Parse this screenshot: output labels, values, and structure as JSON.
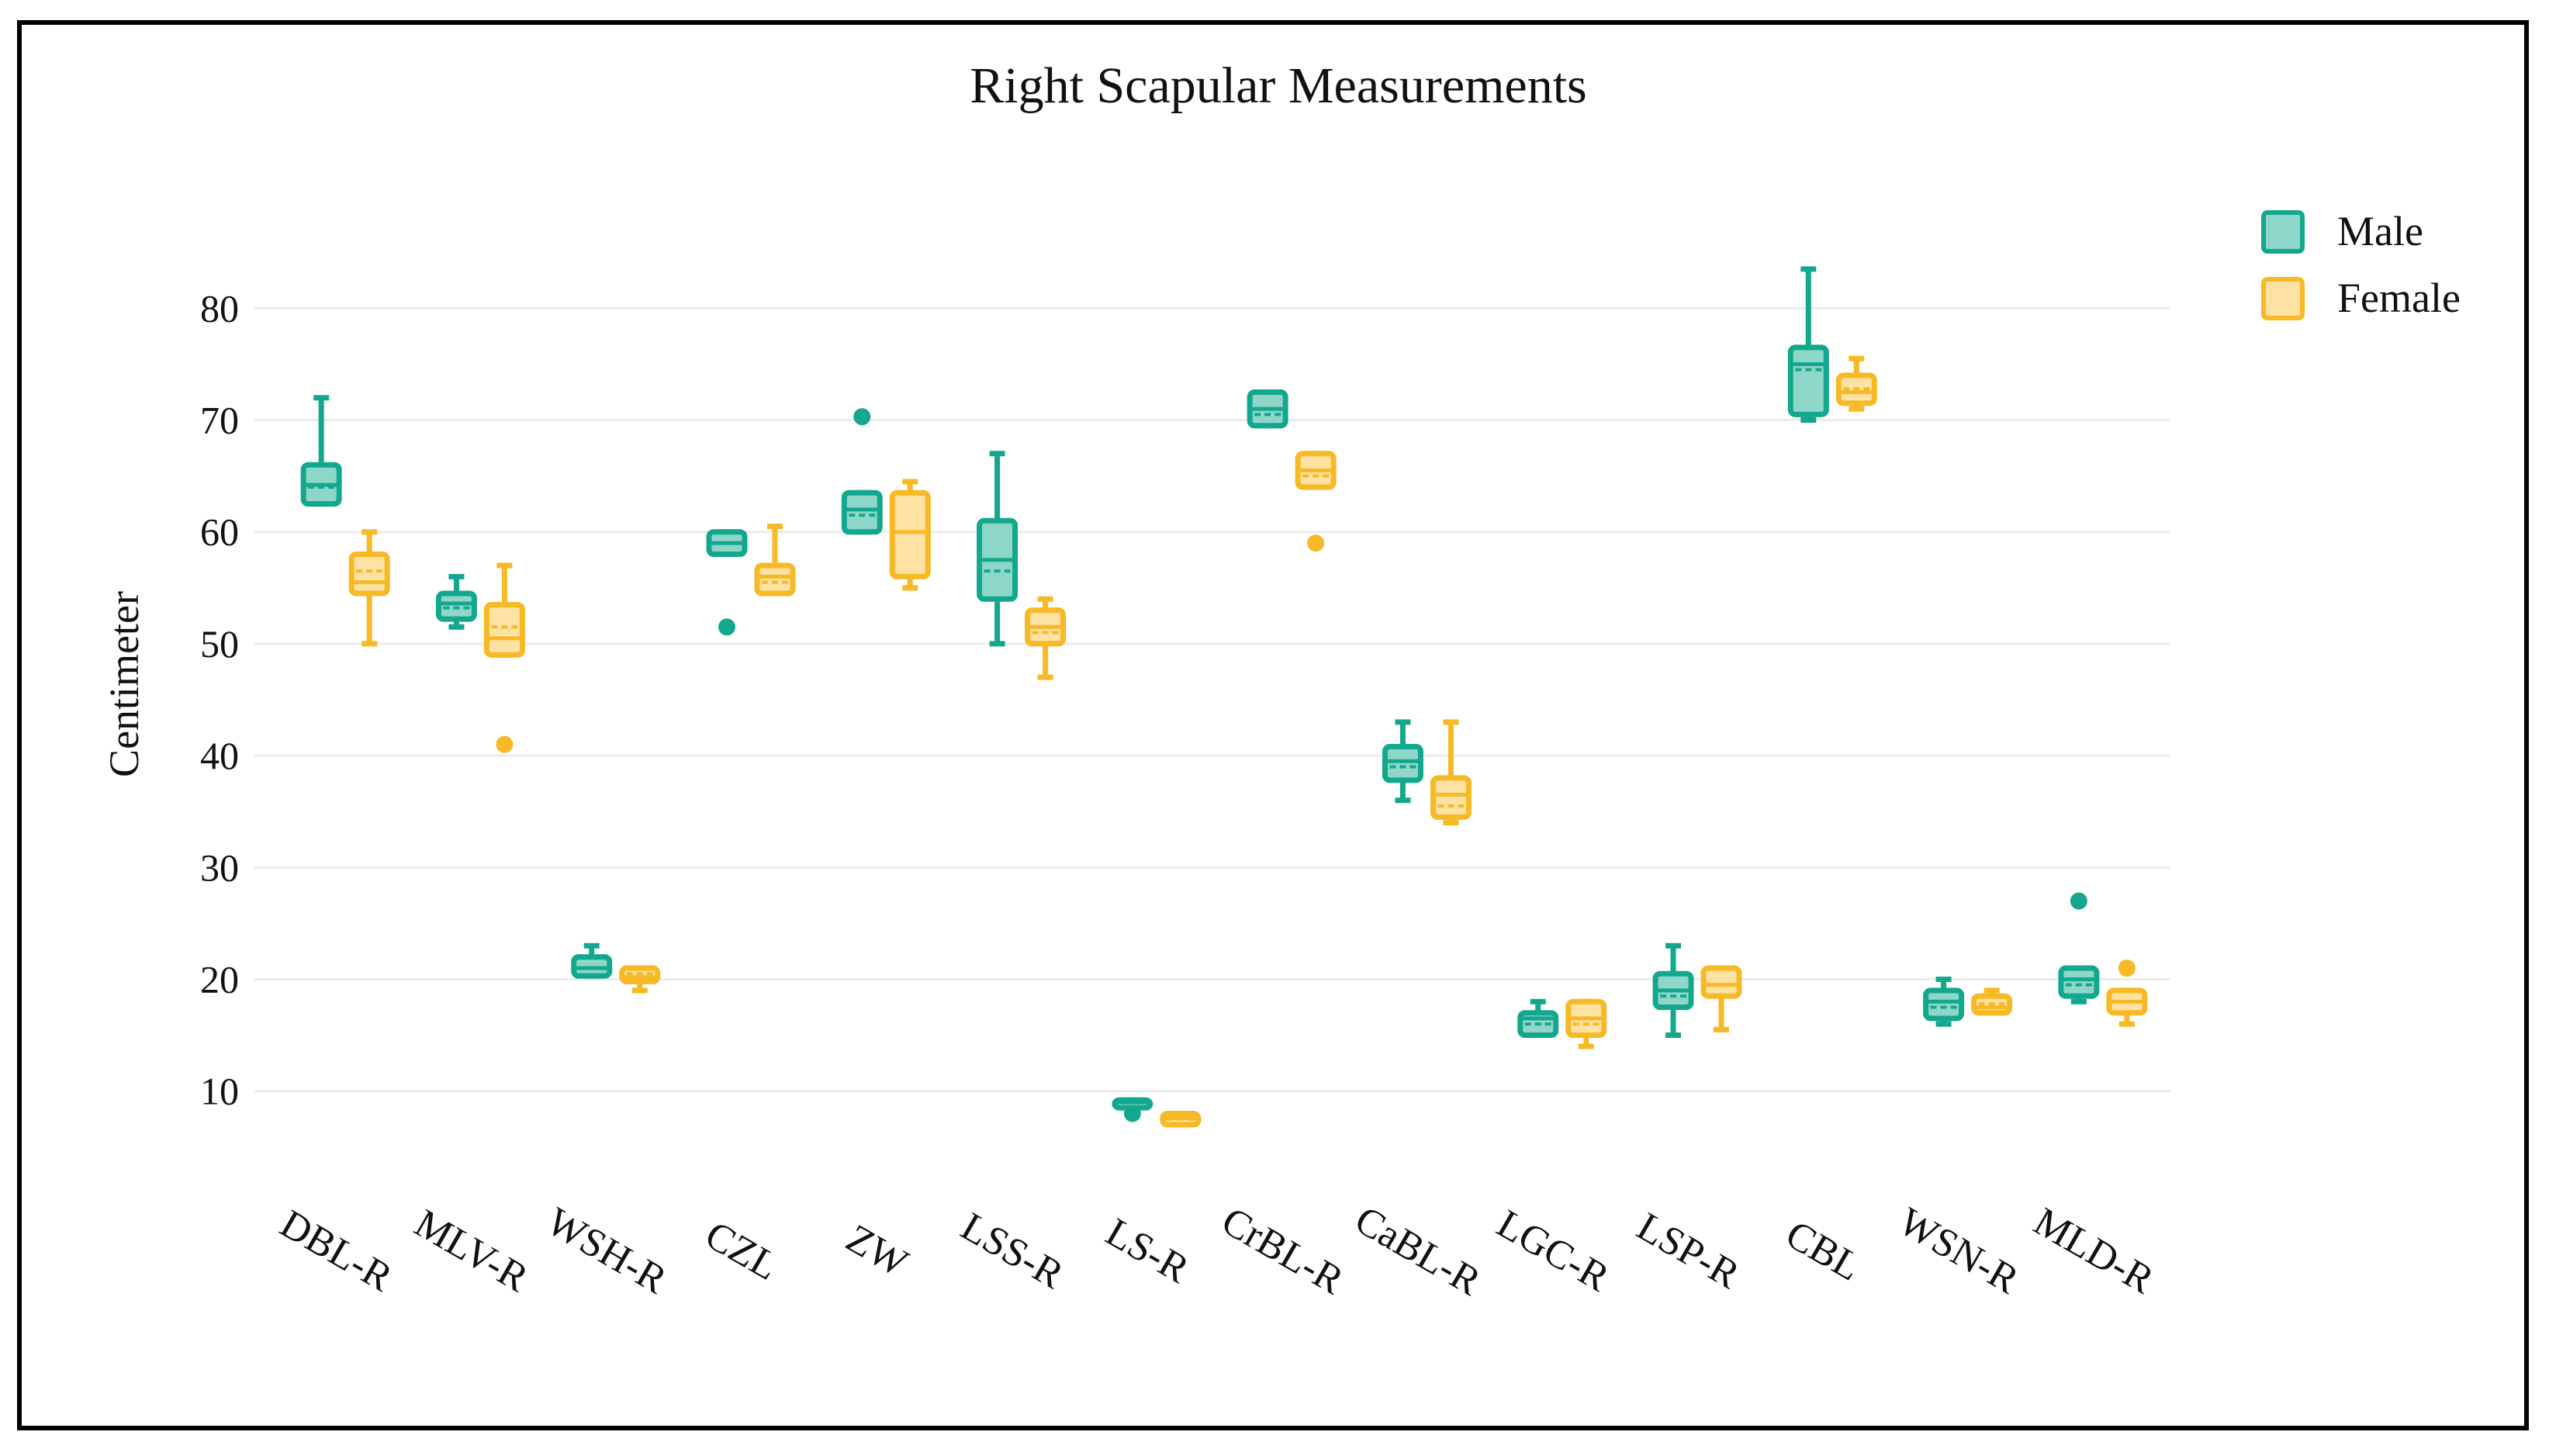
{
  "chart_data": {
    "type": "box",
    "title": "Right Scapular Measurements",
    "xlabel": "",
    "ylabel": "Centimeter",
    "ylim": [
      2,
      88
    ],
    "yticks": [
      10,
      20,
      30,
      40,
      50,
      60,
      70,
      80
    ],
    "grid": true,
    "legend_position": "top-right",
    "categories": [
      "DBL-R",
      "MLV-R",
      "WSH-R",
      "CZL",
      "ZW",
      "LSS-R",
      "LS-R",
      "CrBL-R",
      "CaBL-R",
      "LGC-R",
      "LSP-R",
      "CBL",
      "WSN-R",
      "MLD-R"
    ],
    "series": [
      {
        "name": "Male",
        "color": "#13a88e",
        "fill": "#8ed6c8",
        "boxes": [
          {
            "min": 62.5,
            "q1": 62.5,
            "median": 64.2,
            "q3": 66,
            "max": 72,
            "mean": 64,
            "outliers": []
          },
          {
            "min": 51.5,
            "q1": 52.2,
            "median": 53.6,
            "q3": 54.5,
            "max": 56,
            "mean": 53.2,
            "outliers": []
          },
          {
            "min": 20.3,
            "q1": 20.3,
            "median": 21,
            "q3": 22,
            "max": 23,
            "mean": 21,
            "outliers": []
          },
          {
            "min": 58,
            "q1": 58,
            "median": 59,
            "q3": 60,
            "max": 60,
            "mean": 59,
            "outliers": [
              51.5
            ]
          },
          {
            "min": 60,
            "q1": 60,
            "median": 62,
            "q3": 63.5,
            "max": 63.5,
            "mean": 61.5,
            "outliers": [
              70.3
            ]
          },
          {
            "min": 50,
            "q1": 54,
            "median": 57.5,
            "q3": 61,
            "max": 67,
            "mean": 56.5,
            "outliers": []
          },
          {
            "min": 8.5,
            "q1": 8.8,
            "median": 9,
            "q3": 9.2,
            "max": 9.2,
            "mean": 9,
            "outliers": [
              8
            ]
          },
          {
            "min": 69.5,
            "q1": 69.5,
            "median": 71,
            "q3": 72.5,
            "max": 72.5,
            "mean": 70.5,
            "outliers": []
          },
          {
            "min": 36,
            "q1": 37.8,
            "median": 39.5,
            "q3": 40.8,
            "max": 43,
            "mean": 39,
            "outliers": []
          },
          {
            "min": 15,
            "q1": 15,
            "median": 16.5,
            "q3": 17,
            "max": 18,
            "mean": 16,
            "outliers": []
          },
          {
            "min": 15,
            "q1": 17.5,
            "median": 19,
            "q3": 20.5,
            "max": 23,
            "mean": 18.5,
            "outliers": []
          },
          {
            "min": 70,
            "q1": 70.5,
            "median": 75,
            "q3": 76.5,
            "max": 83.5,
            "mean": 74.5,
            "outliers": []
          },
          {
            "min": 16,
            "q1": 16.5,
            "median": 18,
            "q3": 19,
            "max": 20,
            "mean": 17.5,
            "outliers": []
          },
          {
            "min": 18,
            "q1": 18.5,
            "median": 20,
            "q3": 21,
            "max": 21,
            "mean": 19.5,
            "outliers": [
              27
            ]
          }
        ]
      },
      {
        "name": "Female",
        "color": "#f7b925",
        "fill": "#fde2a4",
        "boxes": [
          {
            "min": 50,
            "q1": 54.5,
            "median": 55.5,
            "q3": 58,
            "max": 60,
            "mean": 56.5,
            "outliers": []
          },
          {
            "min": 49,
            "q1": 49,
            "median": 50.5,
            "q3": 53.5,
            "max": 57,
            "mean": 51.5,
            "outliers": [
              41
            ]
          },
          {
            "min": 19,
            "q1": 19.8,
            "median": 20.2,
            "q3": 21,
            "max": 21,
            "mean": 20.5,
            "outliers": []
          },
          {
            "min": 54.5,
            "q1": 54.5,
            "median": 56,
            "q3": 57,
            "max": 60.5,
            "mean": 55.5,
            "outliers": []
          },
          {
            "min": 55,
            "q1": 56,
            "median": 60,
            "q3": 63.5,
            "max": 64.5,
            "mean": 60,
            "outliers": []
          },
          {
            "min": 47,
            "q1": 50,
            "median": 51.5,
            "q3": 53,
            "max": 54,
            "mean": 51,
            "outliers": []
          },
          {
            "min": 7,
            "q1": 7,
            "median": 7.6,
            "q3": 8,
            "max": 8,
            "mean": 7.5,
            "outliers": []
          },
          {
            "min": 64,
            "q1": 64,
            "median": 65.5,
            "q3": 67,
            "max": 67,
            "mean": 65,
            "outliers": [
              59
            ]
          },
          {
            "min": 34,
            "q1": 34.5,
            "median": 36.5,
            "q3": 38,
            "max": 43,
            "mean": 35.5,
            "outliers": []
          },
          {
            "min": 14,
            "q1": 15,
            "median": 16.5,
            "q3": 18,
            "max": 18,
            "mean": 16,
            "outliers": []
          },
          {
            "min": 15.5,
            "q1": 18.5,
            "median": 19.5,
            "q3": 21,
            "max": 21,
            "mean": 19.5,
            "outliers": []
          },
          {
            "min": 71,
            "q1": 71.5,
            "median": 72.5,
            "q3": 74,
            "max": 75.5,
            "mean": 72.8,
            "outliers": []
          },
          {
            "min": 17,
            "q1": 17,
            "median": 17.5,
            "q3": 18.5,
            "max": 19,
            "mean": 17.8,
            "outliers": []
          },
          {
            "min": 16,
            "q1": 17,
            "median": 18,
            "q3": 19,
            "max": 19,
            "mean": 18,
            "outliers": [
              21
            ]
          }
        ]
      }
    ]
  }
}
